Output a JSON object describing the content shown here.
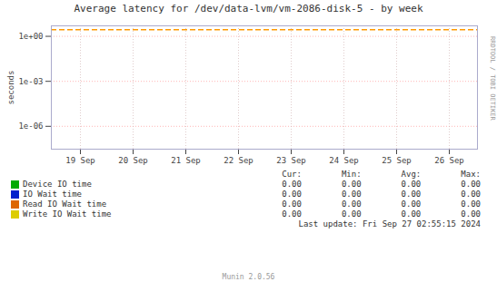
{
  "chart_data": {
    "type": "line",
    "title": "Average latency for /dev/data-lvm/vm-2086-disk-5 - by week",
    "y_label": "seconds",
    "categories": [
      "19 Sep",
      "20 Sep",
      "21 Sep",
      "22 Sep",
      "23 Sep",
      "24 Sep",
      "25 Sep",
      "26 Sep"
    ],
    "series": [
      {
        "name": "Device IO time",
        "color": "#00aa00",
        "values": [
          null,
          null,
          null,
          null,
          null,
          null,
          null,
          null
        ],
        "table_values": [
          "0.00",
          "0.00",
          "0.00",
          "0.00"
        ]
      },
      {
        "name": "IO Wait time",
        "color": "#0022cc",
        "values": [
          null,
          null,
          null,
          null,
          null,
          null,
          null,
          null
        ],
        "table_values": [
          "0.00",
          "0.00",
          "0.00",
          "0.00"
        ]
      },
      {
        "name": "Read IO Wait time",
        "color": "#dd6600",
        "values": [
          null,
          null,
          null,
          null,
          null,
          null,
          null,
          null
        ],
        "table_values": [
          "0.00",
          "0.00",
          "0.00",
          "0.00"
        ]
      },
      {
        "name": "Write IO Wait time",
        "color": "#ddcc00",
        "values": [
          null,
          null,
          null,
          null,
          null,
          null,
          null,
          null
        ],
        "table_values": [
          "0.00",
          "0.00",
          "0.00",
          "0.00"
        ]
      }
    ],
    "table_headers": [
      "Cur:",
      "Min:",
      "Avg:",
      "Max:"
    ],
    "log": "y",
    "ylim": [
      3e-08,
      5
    ],
    "yticks": [
      {
        "value": 1,
        "label": "1e+00"
      },
      {
        "value": 0.001,
        "label": "1e-03"
      },
      {
        "value": 1e-06,
        "label": "1e-06"
      }
    ],
    "grid": true,
    "reference_line": {
      "y": 2.8,
      "color": "#ff9900",
      "line_style": "dashed"
    },
    "side_label": "RRDTOOL / TOBI OETIKER",
    "last_update": "Last update: Fri Sep 27 02:55:15 2024",
    "footer": "Munin 2.0.56"
  }
}
